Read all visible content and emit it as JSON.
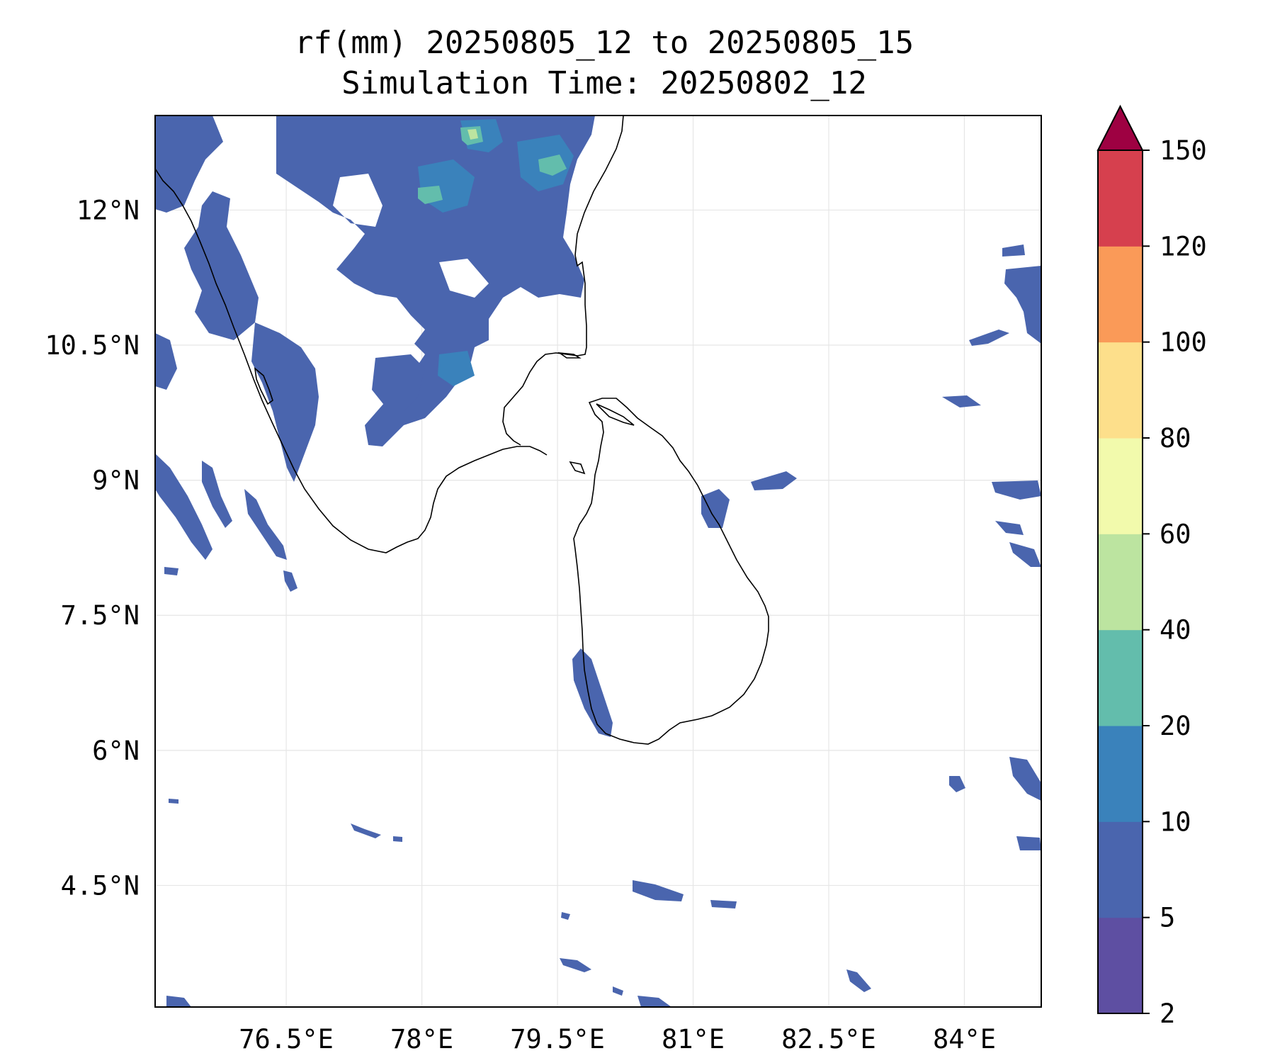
{
  "title": {
    "line1": "rf(mm) 20250805_12 to 20250805_15",
    "line2": "Simulation Time: 20250802_12"
  },
  "map": {
    "region": "Southern India and Sri Lanka",
    "lon_range": [
      75.05,
      84.85
    ],
    "lat_range": [
      3.15,
      13.05
    ],
    "grid": true,
    "coastline_color": "#000000",
    "lon_ticks": [
      {
        "value": 76.5,
        "label": "76.5°E"
      },
      {
        "value": 78,
        "label": "78°E"
      },
      {
        "value": 79.5,
        "label": "79.5°E"
      },
      {
        "value": 81,
        "label": "81°E"
      },
      {
        "value": 82.5,
        "label": "82.5°E"
      },
      {
        "value": 84,
        "label": "84°E"
      }
    ],
    "lat_ticks": [
      {
        "value": 12,
        "label": "12°N"
      },
      {
        "value": 10.5,
        "label": "10.5°N"
      },
      {
        "value": 9,
        "label": "9°N"
      },
      {
        "value": 7.5,
        "label": "7.5°N"
      },
      {
        "value": 6,
        "label": "6°N"
      },
      {
        "value": 4.5,
        "label": "4.5°N"
      }
    ]
  },
  "colorbar": {
    "extend": "max",
    "extend_color": "#9e0142",
    "levels": [
      {
        "lo": 2,
        "hi": 5,
        "label": "2",
        "color": "#5e4fa2"
      },
      {
        "lo": 5,
        "hi": 10,
        "label": "5",
        "color": "#4a65ae"
      },
      {
        "lo": 10,
        "hi": 20,
        "label": "10",
        "color": "#3a82bb"
      },
      {
        "lo": 20,
        "hi": 40,
        "label": "20",
        "color": "#63bdac"
      },
      {
        "lo": 40,
        "hi": 60,
        "label": "40",
        "color": "#bce4a0"
      },
      {
        "lo": 60,
        "hi": 80,
        "label": "60",
        "color": "#f2faac"
      },
      {
        "lo": 80,
        "hi": 100,
        "label": "80",
        "color": "#fddf8b"
      },
      {
        "lo": 100,
        "hi": 120,
        "label": "100",
        "color": "#fa9a58"
      },
      {
        "lo": 120,
        "hi": 150,
        "label": "120",
        "color": "#d6404e"
      }
    ],
    "top_label": "150"
  }
}
